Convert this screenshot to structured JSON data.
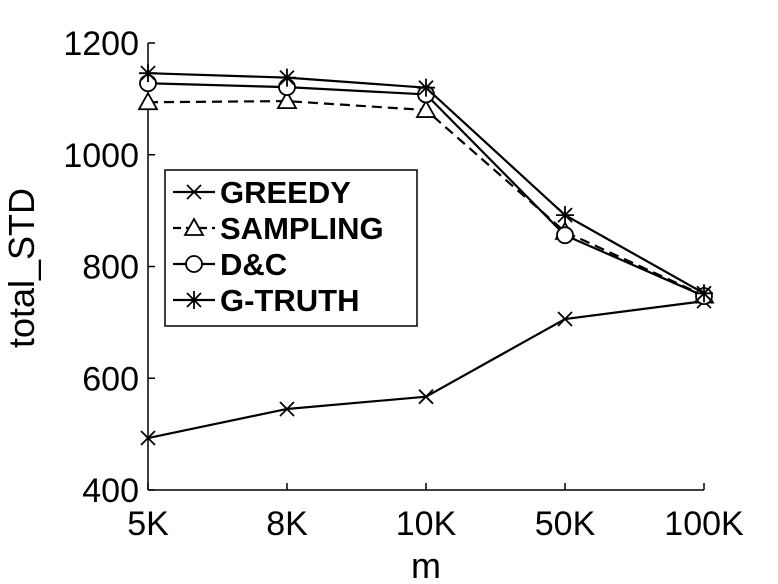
{
  "chart_data": {
    "type": "line",
    "title": "",
    "xlabel": "m",
    "ylabel": "total_STD",
    "categories": [
      "5K",
      "8K",
      "10K",
      "50K",
      "100K"
    ],
    "ylim": [
      400,
      1200
    ],
    "yticks": [
      400,
      600,
      800,
      1000,
      1200
    ],
    "grid": false,
    "legend_position": "center-left",
    "series": [
      {
        "name": "GREEDY",
        "marker": "x",
        "dash": "solid",
        "values": [
          493,
          545,
          567,
          706,
          738
        ]
      },
      {
        "name": "SAMPLING",
        "marker": "triangle",
        "dash": "dashed",
        "values": [
          1094,
          1096,
          1080,
          862,
          748
        ]
      },
      {
        "name": "D&C",
        "marker": "circle",
        "dash": "solid",
        "values": [
          1128,
          1121,
          1108,
          856,
          747
        ]
      },
      {
        "name": "G-TRUTH",
        "marker": "asterisk",
        "dash": "solid",
        "values": [
          1146,
          1138,
          1120,
          892,
          752
        ]
      }
    ]
  }
}
